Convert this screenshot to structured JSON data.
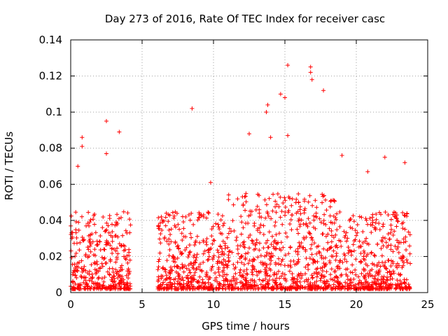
{
  "chart_data": {
    "type": "scatter",
    "title": "Day 273 of 2016, Rate Of TEC Index for receiver casc",
    "xlabel": "GPS time / hours",
    "ylabel": "ROTI / TECUs",
    "xlim": [
      0,
      25
    ],
    "ylim": [
      0,
      0.14
    ],
    "xticks": [
      0,
      5,
      10,
      15,
      20,
      25
    ],
    "yticks": [
      0,
      0.02,
      0.04,
      0.06,
      0.08,
      0.1,
      0.12,
      0.14
    ],
    "xtick_labels": [
      "0",
      "5",
      "10",
      "15",
      "20",
      "25"
    ],
    "ytick_labels": [
      "0",
      "0.02",
      "0.04",
      "0.06",
      "0.08",
      "0.1",
      "0.12",
      "0.14"
    ],
    "grid": true,
    "marker": "+",
    "color": "#ff0000",
    "data_gap_hours": [
      4.2,
      6.1
    ],
    "notable_points": [
      {
        "x": 15.2,
        "y": 0.126
      },
      {
        "x": 16.8,
        "y": 0.125
      },
      {
        "x": 16.8,
        "y": 0.122
      },
      {
        "x": 16.9,
        "y": 0.118
      },
      {
        "x": 17.7,
        "y": 0.112
      },
      {
        "x": 14.7,
        "y": 0.11
      },
      {
        "x": 15.0,
        "y": 0.108
      },
      {
        "x": 8.5,
        "y": 0.102
      },
      {
        "x": 13.8,
        "y": 0.104
      },
      {
        "x": 13.7,
        "y": 0.1
      },
      {
        "x": 2.5,
        "y": 0.095
      },
      {
        "x": 3.4,
        "y": 0.089
      },
      {
        "x": 0.8,
        "y": 0.086
      },
      {
        "x": 0.8,
        "y": 0.081
      },
      {
        "x": 12.5,
        "y": 0.088
      },
      {
        "x": 15.2,
        "y": 0.087
      },
      {
        "x": 14.0,
        "y": 0.086
      },
      {
        "x": 2.5,
        "y": 0.077
      },
      {
        "x": 19.0,
        "y": 0.076
      },
      {
        "x": 22.0,
        "y": 0.075
      },
      {
        "x": 23.4,
        "y": 0.072
      },
      {
        "x": 0.5,
        "y": 0.07
      },
      {
        "x": 20.8,
        "y": 0.067
      },
      {
        "x": 9.8,
        "y": 0.061
      }
    ],
    "bulk_envelope": [
      {
        "hour_range": [
          0,
          4.2
        ],
        "typical_max": 0.045
      },
      {
        "hour_range": [
          6.1,
          11.0
        ],
        "typical_max": 0.045
      },
      {
        "hour_range": [
          11.0,
          18.5
        ],
        "typical_max": 0.055
      },
      {
        "hour_range": [
          18.5,
          23.8
        ],
        "typical_max": 0.045
      }
    ],
    "baseline_min": 0.002
  }
}
